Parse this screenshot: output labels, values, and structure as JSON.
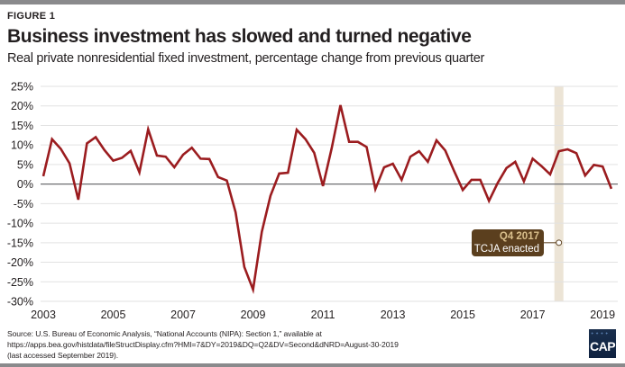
{
  "figure_label": "FIGURE 1",
  "title": "Business investment has slowed and turned negative",
  "subtitle": "Real private nonresidential fixed investment, percentage change from previous quarter",
  "source": {
    "line1": "Source: U.S. Bureau of Economic Analysis, “National Accounts (NIPA): Section 1,” available at",
    "line2": "https://apps.bea.gov/histdata/fileStructDisplay.cfm?HMI=7&DY=2019&DQ=Q2&DV=Second&dNRD=August-30-2019",
    "line3": "(last accessed September 2019)."
  },
  "logo_text": "CAP",
  "annotation": {
    "title": "Q4 2017",
    "text": "TCJA enacted",
    "index": 59
  },
  "colors": {
    "line": "#9b1c1f",
    "grid": "#e2e2e2",
    "zero_line": "#6d6e71",
    "highlight_band": "#ece4d6",
    "annotation_bg": "#5b3f1e",
    "annotation_title": "#d9bf8c"
  },
  "chart_data": {
    "type": "line",
    "title": "Business investment has slowed and turned negative",
    "subtitle": "Real private nonresidential fixed investment, percentage change from previous quarter",
    "xlabel": "",
    "ylabel": "",
    "ylim": [
      -30,
      25
    ],
    "yticks": [
      25,
      20,
      15,
      10,
      5,
      0,
      -5,
      -10,
      -15,
      -20,
      -25,
      -30
    ],
    "ytick_labels": [
      "25%",
      "20%",
      "15%",
      "10%",
      "5%",
      "0%",
      "-5%",
      "-10%",
      "-15%",
      "-20%",
      "-25%",
      "-30%"
    ],
    "xtick_labels": [
      "2003",
      "2005",
      "2007",
      "2009",
      "2011",
      "2013",
      "2015",
      "2017",
      "2019"
    ],
    "xtick_index": [
      0,
      8,
      16,
      24,
      32,
      40,
      48,
      56,
      64
    ],
    "grid": true,
    "legend": "none",
    "start": "2003 Q1",
    "end": "2019 Q2",
    "highlight": {
      "label": "Q4 2017",
      "index": 59
    },
    "series": [
      {
        "name": "Real private nonresidential fixed investment (% change)",
        "values": [
          2.0,
          11.5,
          9.0,
          5.3,
          -4.0,
          10.4,
          12.0,
          8.7,
          6.0,
          6.7,
          8.5,
          3.0,
          14.0,
          7.3,
          7.0,
          4.3,
          7.5,
          9.3,
          6.5,
          6.4,
          1.8,
          0.9,
          -7.2,
          -21.2,
          -27.0,
          -12.2,
          -3.0,
          2.7,
          2.9,
          13.9,
          11.5,
          8.0,
          -0.5,
          9.2,
          20.2,
          10.8,
          10.8,
          9.5,
          -1.3,
          4.3,
          5.2,
          1.1,
          7.0,
          8.4,
          5.7,
          11.2,
          8.6,
          3.4,
          -1.5,
          1.1,
          1.1,
          -4.3,
          0.3,
          4.1,
          5.7,
          0.7,
          6.5,
          4.6,
          2.5,
          8.4,
          8.9,
          7.9,
          2.2,
          4.9,
          4.5,
          -1.2
        ]
      }
    ]
  }
}
